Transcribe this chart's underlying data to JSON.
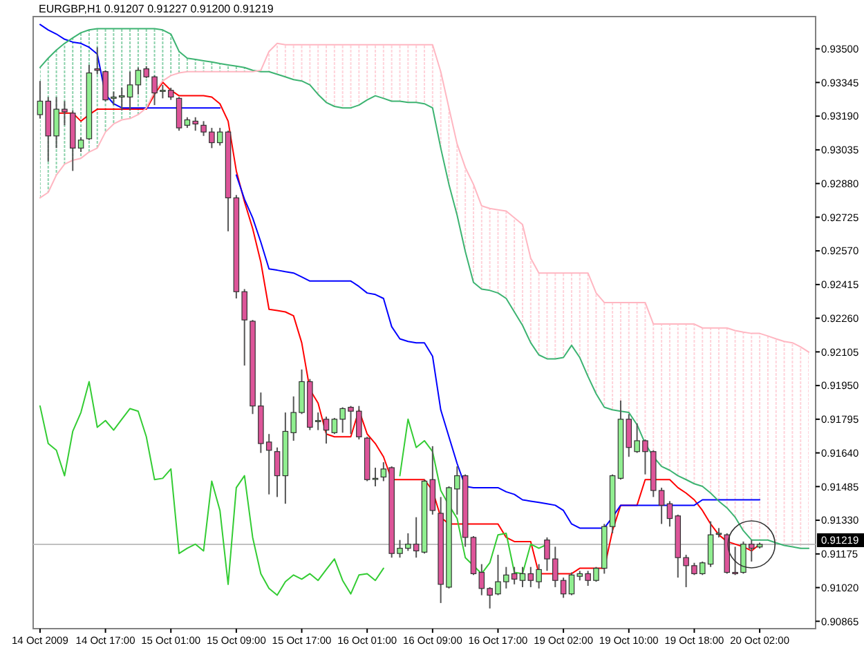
{
  "chart_data": {
    "type": "candlestick",
    "title": "EURGBP,H1  0.91207 0.91227 0.91200 0.91219",
    "categories": [
      "14 Oct 2009",
      null,
      null,
      null,
      null,
      null,
      null,
      null,
      "14 Oct 17:00",
      null,
      null,
      null,
      null,
      null,
      null,
      null,
      "15 Oct 01:00",
      null,
      null,
      null,
      null,
      null,
      null,
      null,
      "15 Oct 09:00",
      null,
      null,
      null,
      null,
      null,
      null,
      null,
      "15 Oct 17:00",
      null,
      null,
      null,
      null,
      null,
      null,
      null,
      "16 Oct 01:00",
      null,
      null,
      null,
      null,
      null,
      null,
      null,
      "16 Oct 09:00",
      null,
      null,
      null,
      null,
      null,
      null,
      null,
      "16 Oct 17:00",
      null,
      null,
      null,
      null,
      null,
      null,
      null,
      "19 Oct 02:00",
      null,
      null,
      null,
      null,
      null,
      null,
      null,
      "19 Oct 10:00",
      null,
      null,
      null,
      null,
      null,
      null,
      null,
      "19 Oct 18:00",
      null,
      null,
      null,
      null,
      null,
      null,
      null,
      "20 Oct 02:00",
      null,
      null,
      null,
      null,
      null,
      null
    ],
    "ohlc": [
      [
        0.93197,
        0.93352,
        0.93179,
        0.93259
      ],
      [
        0.93259,
        0.93278,
        0.92981,
        0.93099
      ],
      [
        0.93099,
        0.93278,
        0.93043,
        0.93222
      ],
      [
        0.93222,
        0.93259,
        0.93148,
        0.9321
      ],
      [
        0.93204,
        0.93216,
        0.92938,
        0.93043
      ],
      [
        0.93043,
        0.93092,
        0.93025,
        0.9308
      ],
      [
        0.93086,
        0.93426,
        0.9308,
        0.93389
      ],
      [
        0.93408,
        0.93507,
        0.93383,
        0.93401
      ],
      [
        0.93395,
        0.93401,
        0.93259,
        0.93265
      ],
      [
        0.93272,
        0.93303,
        0.93241,
        0.93278
      ],
      [
        0.93278,
        0.93321,
        0.93216,
        0.93284
      ],
      [
        0.93278,
        0.93395,
        0.93216,
        0.93334
      ],
      [
        0.93334,
        0.93414,
        0.9329,
        0.93401
      ],
      [
        0.93408,
        0.9342,
        0.93365,
        0.93371
      ],
      [
        0.93371,
        0.93377,
        0.93241,
        0.93297
      ],
      [
        0.93309,
        0.93334,
        0.93272,
        0.93309
      ],
      [
        0.93309,
        0.93321,
        0.93265,
        0.93278
      ],
      [
        0.93272,
        0.93278,
        0.93123,
        0.93136
      ],
      [
        0.93148,
        0.93185,
        0.93136,
        0.93173
      ],
      [
        0.93167,
        0.93185,
        0.93123,
        0.93154
      ],
      [
        0.93148,
        0.93167,
        0.93099,
        0.93117
      ],
      [
        0.93117,
        0.93136,
        0.93043,
        0.93068
      ],
      [
        0.93068,
        0.93136,
        0.93055,
        0.93117
      ],
      [
        0.93117,
        0.93123,
        0.9266,
        0.92814
      ],
      [
        0.92814,
        0.92827,
        0.92351,
        0.92382
      ],
      [
        0.92382,
        0.92394,
        0.92042,
        0.92252
      ],
      [
        0.92246,
        0.92252,
        0.91819,
        0.91856
      ],
      [
        0.91856,
        0.91918,
        0.9164,
        0.91683
      ],
      [
        0.9169,
        0.91727,
        0.91449,
        0.91652
      ],
      [
        0.91646,
        0.91665,
        0.91437,
        0.91535
      ],
      [
        0.91535,
        0.91826,
        0.91406,
        0.91739
      ],
      [
        0.91733,
        0.919,
        0.91696,
        0.91826
      ],
      [
        0.91826,
        0.92024,
        0.91819,
        0.91968
      ],
      [
        0.91968,
        0.9198,
        0.91745,
        0.91758
      ],
      [
        0.91789,
        0.91826,
        0.91745,
        0.91789
      ],
      [
        0.91795,
        0.91807,
        0.91683,
        0.91745
      ],
      [
        0.91733,
        0.91801,
        0.91727,
        0.91795
      ],
      [
        0.91795,
        0.9185,
        0.91733,
        0.91844
      ],
      [
        0.9185,
        0.91856,
        0.91727,
        0.91832
      ],
      [
        0.91832,
        0.91856,
        0.91702,
        0.91714
      ],
      [
        0.91708,
        0.91714,
        0.9151,
        0.91517
      ],
      [
        0.91523,
        0.91572,
        0.91486,
        0.91523
      ],
      [
        0.91529,
        0.91597,
        0.9151,
        0.91566
      ],
      [
        0.91572,
        0.91578,
        0.91158,
        0.91177
      ],
      [
        0.91177,
        0.91239,
        0.91158,
        0.91201
      ],
      [
        0.91201,
        0.9127,
        0.91189,
        0.9122
      ],
      [
        0.9122,
        0.91344,
        0.91158,
        0.91189
      ],
      [
        0.91183,
        0.91517,
        0.91177,
        0.9151
      ],
      [
        0.91517,
        0.91671,
        0.91356,
        0.91375
      ],
      [
        0.91362,
        0.91437,
        0.90949,
        0.91035
      ],
      [
        0.91022,
        0.91486,
        0.91016,
        0.9148
      ],
      [
        0.91474,
        0.91578,
        0.91356,
        0.91535
      ],
      [
        0.91535,
        0.91541,
        0.91208,
        0.91251
      ],
      [
        0.91251,
        0.91257,
        0.91078,
        0.91084
      ],
      [
        0.9109,
        0.91128,
        0.90985,
        0.91016
      ],
      [
        0.91016,
        0.91022,
        0.90924,
        0.90985
      ],
      [
        0.90991,
        0.91171,
        0.90985,
        0.91047
      ],
      [
        0.91047,
        0.91115,
        0.91016,
        0.91078
      ],
      [
        0.91084,
        0.91115,
        0.91035,
        0.91059
      ],
      [
        0.91053,
        0.91115,
        0.91022,
        0.91084
      ],
      [
        0.91084,
        0.91115,
        0.91022,
        0.91053
      ],
      [
        0.91047,
        0.91128,
        0.91016,
        0.91103
      ],
      [
        0.91239,
        0.91251,
        0.91097,
        0.91152
      ],
      [
        0.91152,
        0.91208,
        0.91022,
        0.91053
      ],
      [
        0.91053,
        0.91066,
        0.90973,
        0.90991
      ],
      [
        0.90991,
        0.9109,
        0.90985,
        0.91078
      ],
      [
        0.91072,
        0.91097,
        0.91053,
        0.91084
      ],
      [
        0.91084,
        0.91097,
        0.91028,
        0.91053
      ],
      [
        0.91053,
        0.91115,
        0.91047,
        0.91109
      ],
      [
        0.91109,
        0.91313,
        0.91084,
        0.91301
      ],
      [
        0.91301,
        0.91541,
        0.9127,
        0.91535
      ],
      [
        0.91523,
        0.91881,
        0.91517,
        0.91795
      ],
      [
        0.91795,
        0.91819,
        0.91622,
        0.91665
      ],
      [
        0.91646,
        0.91776,
        0.9164,
        0.91696
      ],
      [
        0.91696,
        0.91702,
        0.91541,
        0.91646
      ],
      [
        0.91646,
        0.91652,
        0.91437,
        0.91467
      ],
      [
        0.91467,
        0.9148,
        0.91313,
        0.91399
      ],
      [
        0.91406,
        0.91418,
        0.91301,
        0.91338
      ],
      [
        0.9135,
        0.91356,
        0.91066,
        0.91158
      ],
      [
        0.91158,
        0.91171,
        0.91022,
        0.91121
      ],
      [
        0.91121,
        0.91134,
        0.91078,
        0.91084
      ],
      [
        0.91084,
        0.9114,
        0.91078,
        0.91134
      ],
      [
        0.91128,
        0.91325,
        0.91115,
        0.91263
      ],
      [
        0.9127,
        0.91294,
        0.91251,
        0.9127
      ],
      [
        0.91263,
        0.9127,
        0.91084,
        0.9109
      ],
      [
        0.9109,
        0.91208,
        0.91078,
        0.91084
      ],
      [
        0.9109,
        0.91232,
        0.91084,
        0.9122
      ],
      [
        0.9122,
        0.91239,
        0.9114,
        0.91201
      ],
      [
        0.91207,
        0.91227,
        0.912,
        0.91219
      ],
      null,
      null,
      null,
      null,
      null,
      null
    ],
    "series": [
      {
        "type": "line",
        "color": "#ff0000",
        "values": [
          null,
          null,
          0.93204,
          0.93204,
          0.93204,
          0.93167,
          0.93197,
          0.93222,
          0.93222,
          0.93222,
          0.93222,
          0.93222,
          0.93222,
          0.93222,
          0.9329,
          0.93346,
          0.93309,
          0.93284,
          0.93284,
          0.93284,
          0.93284,
          0.93278,
          0.93247,
          0.93167,
          0.92938,
          0.92796,
          0.92673,
          0.92518,
          0.92301,
          0.92295,
          0.92289,
          0.92271,
          0.92147,
          0.91931,
          0.91869,
          0.91727,
          0.91714,
          0.91714,
          0.91714,
          0.91838,
          0.91727,
          0.91683,
          0.91622,
          0.91517,
          0.91517,
          0.91517,
          0.91517,
          0.91517,
          0.91467,
          0.91344,
          0.91313,
          0.91313,
          0.91313,
          0.91313,
          0.91313,
          0.91313,
          0.91313,
          0.91251,
          0.91232,
          0.91232,
          0.91232,
          0.91084,
          0.91084,
          0.91084,
          0.91084,
          0.91084,
          0.91109,
          0.91109,
          0.91109,
          0.91109,
          0.91282,
          0.91399,
          0.91399,
          0.91399,
          0.91517,
          0.91517,
          0.91517,
          0.91517,
          0.9148,
          0.91455,
          0.91424,
          0.91375,
          0.91313,
          0.91263,
          0.91232,
          0.9122,
          0.91208,
          0.91189,
          0.9122,
          null,
          null,
          null,
          null,
          null,
          null
        ]
      },
      {
        "type": "line",
        "color": "#0000ff",
        "values": [
          0.93612,
          0.93587,
          0.93568,
          0.93544,
          0.93531,
          0.93525,
          0.93507,
          0.93476,
          0.9329,
          0.93247,
          0.93228,
          0.93228,
          0.93228,
          0.93228,
          0.93228,
          0.93228,
          0.93228,
          0.93228,
          0.93228,
          0.93228,
          0.93228,
          0.93228,
          0.93228,
          null,
          0.92919,
          0.92808,
          0.92722,
          0.9261,
          0.92487,
          0.92481,
          0.92474,
          0.92468,
          0.9245,
          0.92431,
          0.92431,
          0.92431,
          0.92431,
          0.92431,
          0.92431,
          0.92406,
          0.92376,
          0.92369,
          0.92351,
          0.92221,
          0.92165,
          0.92153,
          0.92147,
          0.92147,
          0.92085,
          0.91838,
          0.91714,
          0.91591,
          0.91486,
          0.9148,
          0.9148,
          0.9148,
          0.9148,
          0.91461,
          0.91449,
          0.91424,
          0.91418,
          0.91412,
          0.91406,
          0.91399,
          0.91375,
          0.91313,
          0.91294,
          0.91294,
          0.91294,
          0.91294,
          0.91344,
          0.91399,
          0.91399,
          0.91399,
          0.91399,
          0.91399,
          0.91399,
          0.91399,
          0.91399,
          0.91399,
          0.91399,
          0.91424,
          0.91424,
          0.91424,
          0.91424,
          0.91424,
          0.91424,
          0.91424,
          0.91424,
          null,
          null,
          null,
          null,
          null,
          null
        ]
      },
      {
        "type": "line",
        "color": "#33cc33",
        "values": [
          0.91856,
          0.91683,
          0.91652,
          0.91535,
          0.91739,
          0.91826,
          0.91968,
          0.91758,
          0.91789,
          0.91745,
          0.91795,
          0.91844,
          0.91832,
          0.91714,
          0.91517,
          0.91523,
          0.91566,
          0.91177,
          0.91201,
          0.9122,
          0.91189,
          0.9151,
          0.91375,
          0.91035,
          0.9148,
          0.91535,
          0.91251,
          0.91084,
          0.91016,
          0.90985,
          0.91047,
          0.91078,
          0.91059,
          0.91084,
          0.91053,
          0.91103,
          0.91152,
          0.91053,
          0.90991,
          0.91078,
          0.91084,
          0.91053,
          0.91109,
          null,
          0.91535,
          0.91795,
          0.91665,
          0.91696,
          0.91646,
          0.91467,
          0.91399,
          0.91338,
          0.91158,
          0.91121,
          0.91084,
          0.91134,
          0.91263,
          0.9127,
          0.9109,
          0.91084,
          0.9122,
          0.91201,
          0.91219,
          null,
          null,
          null,
          null,
          null,
          null,
          null,
          null,
          null,
          null,
          null,
          null,
          null,
          null,
          null,
          null,
          null,
          null,
          null,
          null,
          null,
          null,
          null,
          null,
          null,
          null,
          null,
          null,
          null,
          null,
          null,
          null
        ]
      },
      {
        "type": "line",
        "color": "#3cb371",
        "lower": [
          0.92814,
          0.92839,
          0.92919,
          0.92969,
          0.92987,
          0.92996,
          0.93025,
          0.93043,
          0.93117,
          0.93154,
          0.93173,
          0.93179,
          0.93197,
          0.93228,
          0.93303,
          0.93352,
          0.93377,
          0.93389,
          0.93395,
          0.93395,
          0.93395,
          0.93395,
          0.93395,
          0.93395,
          0.93395,
          0.93395,
          0.93395,
          null,
          null,
          null,
          null,
          null,
          null,
          null,
          null,
          null,
          null,
          null,
          null,
          null,
          null,
          null,
          null,
          null,
          null,
          null,
          null,
          null,
          null,
          null,
          null,
          null,
          null,
          null,
          null,
          null,
          null,
          null,
          null,
          null,
          null,
          null,
          null,
          null,
          null,
          null,
          null,
          null,
          null,
          null,
          null,
          null,
          null,
          null,
          null,
          null,
          null,
          null,
          null,
          null,
          null,
          null,
          null,
          null,
          null,
          null,
          null,
          null,
          null,
          null,
          null,
          null,
          null,
          null,
          null
        ],
        "upper": [
          0.93414,
          0.93457,
          0.93494,
          0.93525,
          0.9355,
          0.93574,
          0.93587,
          0.93593,
          0.93593,
          0.93593,
          0.93593,
          0.93593,
          0.93593,
          0.93593,
          0.93593,
          0.93587,
          0.93568,
          0.93488,
          0.93457,
          0.93451,
          0.93445,
          0.93439,
          0.93432,
          0.93426,
          0.9342,
          0.93414,
          0.93401,
          null,
          null,
          null,
          null,
          null,
          null,
          null,
          null,
          null,
          null,
          null,
          null,
          null,
          null,
          null,
          null,
          null,
          null,
          null,
          null,
          null,
          null,
          null,
          null,
          null,
          null,
          null,
          null,
          null,
          null,
          null,
          null,
          null,
          null,
          null,
          null,
          null,
          null,
          null,
          null,
          null,
          null,
          null,
          null,
          null,
          null,
          null,
          null,
          null,
          null,
          null,
          null,
          null,
          null,
          null,
          null,
          null,
          null,
          null,
          null,
          null,
          null,
          null,
          null,
          null,
          null,
          null,
          null
        ],
        "values": [
          0.93414,
          0.93457,
          0.93494,
          0.93525,
          0.9355,
          0.93574,
          0.93587,
          0.93593,
          0.93593,
          0.93593,
          0.93593,
          0.93593,
          0.93593,
          0.93593,
          0.93593,
          0.93587,
          0.93568,
          0.93488,
          0.93457,
          0.93451,
          0.93445,
          0.93439,
          0.93432,
          0.93426,
          0.9342,
          0.93414,
          0.93401,
          0.93395,
          0.93395,
          0.93383,
          0.93371,
          0.93358,
          0.93352,
          0.93334,
          0.9329,
          0.93253,
          0.93235,
          0.93228,
          0.93228,
          0.93241,
          0.93265,
          0.93284,
          0.93272,
          0.93259,
          0.93259,
          0.93253,
          0.93253,
          0.93247,
          0.93228,
          0.93043,
          0.92876,
          0.92734,
          0.92567,
          0.92425,
          0.92394,
          0.92388,
          0.92376,
          0.92351,
          0.92289,
          0.92227,
          0.92147,
          0.92091,
          0.92073,
          0.92073,
          0.92079,
          0.92135,
          0.92079,
          0.91992,
          0.91912,
          0.9185,
          0.91838,
          0.91832,
          0.91826,
          0.9177,
          0.91683,
          0.91622,
          0.91578,
          0.9156,
          0.91535,
          0.91517,
          0.91498,
          0.91486,
          0.91455,
          0.91418,
          0.91387,
          0.91344,
          0.91282,
          0.91239,
          0.91239,
          0.91239,
          0.91226,
          0.91214,
          0.91208,
          0.91201,
          0.91201
        ]
      },
      {
        "type": "line",
        "color": "#ffb6c1",
        "lower": [
          null,
          null,
          null,
          null,
          null,
          null,
          null,
          null,
          null,
          null,
          null,
          null,
          null,
          null,
          null,
          null,
          null,
          null,
          null,
          null,
          null,
          null,
          null,
          null,
          null,
          null,
          null,
          0.93395,
          0.93395,
          0.93383,
          0.93371,
          0.93358,
          0.93352,
          0.93334,
          0.9329,
          0.93253,
          0.93235,
          0.93228,
          0.93228,
          0.93241,
          0.93265,
          0.93284,
          0.93272,
          0.93259,
          0.93259,
          0.93253,
          0.93253,
          0.93247,
          0.93228,
          0.93043,
          0.92876,
          0.92734,
          0.92567,
          0.92425,
          0.92394,
          0.92388,
          0.92376,
          0.92351,
          0.92289,
          0.92227,
          0.92147,
          0.92091,
          0.92073,
          0.92073,
          0.92079,
          0.92135,
          0.92079,
          0.91992,
          0.91912,
          0.9185,
          0.91838,
          0.91832,
          0.91826,
          0.9177,
          0.91683,
          0.91622,
          0.91578,
          0.9156,
          0.91535,
          0.91517,
          0.91498,
          0.91486,
          0.91455,
          0.91418,
          0.91387,
          0.91344,
          0.91282,
          0.91239,
          0.91239,
          0.91239,
          0.91226,
          0.91214,
          0.91208,
          0.91201,
          0.91201
        ],
        "upper": [
          null,
          null,
          null,
          null,
          null,
          null,
          null,
          null,
          null,
          null,
          null,
          null,
          null,
          null,
          null,
          null,
          null,
          null,
          null,
          null,
          null,
          null,
          null,
          null,
          null,
          null,
          null,
          0.93401,
          0.93488,
          0.93525,
          0.93519,
          0.93519,
          0.93519,
          0.93519,
          0.93519,
          0.93519,
          0.93519,
          0.93519,
          0.93519,
          0.93519,
          0.93519,
          0.93519,
          0.93519,
          0.93519,
          0.93519,
          0.93519,
          0.93519,
          0.93519,
          0.93519,
          0.93395,
          0.93228,
          0.93062,
          0.92954,
          0.92876,
          0.92777,
          0.92765,
          0.92759,
          0.92753,
          0.92722,
          0.92691,
          0.92536,
          0.92468,
          0.92468,
          0.92468,
          0.92468,
          0.92468,
          0.92468,
          0.92468,
          0.92376,
          0.92332,
          0.92332,
          0.92332,
          0.92332,
          0.92332,
          0.92332,
          0.92233,
          0.92233,
          0.92233,
          0.92233,
          0.92233,
          0.92233,
          0.92215,
          0.92215,
          0.92215,
          0.92215,
          0.92203,
          0.92196,
          0.9219,
          0.9219,
          0.92178,
          0.92165,
          0.92153,
          0.92147,
          0.92128,
          0.92104
        ],
        "values": [
          0.92814,
          0.92839,
          0.92919,
          0.92969,
          0.92987,
          0.92996,
          0.93025,
          0.93043,
          0.93117,
          0.93154,
          0.93173,
          0.93179,
          0.93197,
          0.93228,
          0.93303,
          0.93352,
          0.93377,
          0.93389,
          0.93395,
          0.93395,
          0.93395,
          0.93395,
          0.93395,
          0.93395,
          0.93395,
          0.93395,
          0.93395,
          0.93401,
          0.93488,
          0.93525,
          0.93519,
          0.93519,
          0.93519,
          0.93519,
          0.93519,
          0.93519,
          0.93519,
          0.93519,
          0.93519,
          0.93519,
          0.93519,
          0.93519,
          0.93519,
          0.93519,
          0.93519,
          0.93519,
          0.93519,
          0.93519,
          0.93519,
          0.93395,
          0.93228,
          0.93062,
          0.92954,
          0.92876,
          0.92777,
          0.92765,
          0.92759,
          0.92753,
          0.92722,
          0.92691,
          0.92536,
          0.92468,
          0.92468,
          0.92468,
          0.92468,
          0.92468,
          0.92468,
          0.92468,
          0.92376,
          0.92332,
          0.92332,
          0.92332,
          0.92332,
          0.92332,
          0.92332,
          0.92233,
          0.92233,
          0.92233,
          0.92233,
          0.92233,
          0.92233,
          0.92215,
          0.92215,
          0.92215,
          0.92215,
          0.92203,
          0.92196,
          0.9219,
          0.9219,
          0.92178,
          0.92165,
          0.92153,
          0.92147,
          0.92128,
          0.92104
        ]
      }
    ],
    "ylim": [
      0.90831,
      0.93642
    ],
    "yticks": [
      {
        "value": 0.935,
        "label": "0.93500"
      },
      {
        "value": 0.93345,
        "label": "0.93345"
      },
      {
        "value": 0.9319,
        "label": "0.93190"
      },
      {
        "value": 0.93035,
        "label": "0.93035"
      },
      {
        "value": 0.9288,
        "label": "0.92880"
      },
      {
        "value": 0.92725,
        "label": "0.92725"
      },
      {
        "value": 0.9257,
        "label": "0.92570"
      },
      {
        "value": 0.92415,
        "label": "0.92415"
      },
      {
        "value": 0.9226,
        "label": "0.92260"
      },
      {
        "value": 0.92105,
        "label": "0.92105"
      },
      {
        "value": 0.9195,
        "label": "0.91950"
      },
      {
        "value": 0.91795,
        "label": "0.91795"
      },
      {
        "value": 0.9164,
        "label": "0.91640"
      },
      {
        "value": 0.91485,
        "label": "0.91485"
      },
      {
        "value": 0.9133,
        "label": "0.91330"
      },
      {
        "value": 0.91175,
        "label": "0.91175"
      },
      {
        "value": 0.9102,
        "label": "0.91020"
      },
      {
        "value": 0.90865,
        "label": "0.90865"
      }
    ],
    "ref_lines": [
      {
        "axis": "y",
        "value": 0.91219,
        "label": "0.91219",
        "color": "#c0c0c0"
      }
    ],
    "line_style": "solid"
  }
}
